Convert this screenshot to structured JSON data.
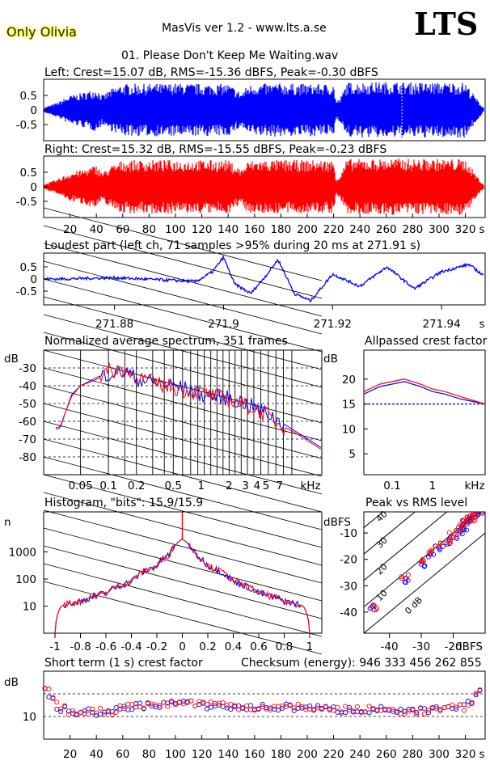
{
  "header": {
    "artist": "Only Olivia",
    "app_title": "MasVis ver 1.2 - www.lts.a.se",
    "logo": "LTS",
    "track_title": "01. Please Don't Keep Me Waiting.wav"
  },
  "waveforms": {
    "left_label": "Left: Crest=15.07 dB, RMS=-15.36 dBFS, Peak=-0.30 dBFS",
    "right_label": "Right: Crest=15.32 dB, RMS=-15.55 dBFS, Peak=-0.23 dBFS",
    "y_ticks": [
      "0.5",
      "0",
      "-0.5"
    ],
    "x_ticks": [
      "20",
      "40",
      "60",
      "80",
      "100",
      "120",
      "140",
      "160",
      "180",
      "200",
      "220",
      "240",
      "260",
      "280",
      "300",
      "320"
    ],
    "x_unit": "s",
    "left_color": "#0000ff",
    "right_color": "#ff0000"
  },
  "loudest": {
    "label": "Loudest part (left  ch, 71 samples >95% during 20 ms at 271.91 s)",
    "y_ticks": [
      "0.5",
      "0",
      "-0.5"
    ],
    "x_ticks": [
      "271.88",
      "271.9",
      "271.92",
      "271.94"
    ],
    "x_unit": "s"
  },
  "spectrum": {
    "label": "Normalized average spectrum, 351 frames",
    "y_unit": "dB",
    "y_ticks": [
      "-30",
      "-40",
      "-50",
      "-60",
      "-70",
      "-80"
    ],
    "x_ticks": [
      "0.05",
      "0.1",
      "0.2",
      "0.5",
      "1",
      "2",
      "3",
      "4",
      "5",
      "7"
    ],
    "x_unit": "kHz"
  },
  "allpass": {
    "label": "Allpassed crest factor",
    "y_unit": "dB",
    "y_ticks": [
      "20",
      "15",
      "10",
      "5"
    ],
    "x_ticks": [
      "0.1",
      "1"
    ],
    "x_unit": "kHz"
  },
  "histogram": {
    "label": "Histogram, \"bits\": 15.9/15.9",
    "y_unit": "n",
    "y_ticks": [
      "1000",
      "100",
      "10"
    ],
    "x_ticks": [
      "-1",
      "-0.8",
      "-0.6",
      "-0.4",
      "-0.2",
      "0",
      "0.2",
      "0.4",
      "0.6",
      "0.8",
      "1"
    ]
  },
  "peak_rms": {
    "label": "Peak vs RMS level",
    "y_unit": "dBFS",
    "y_ticks": [
      "-10",
      "-20",
      "-30",
      "-40"
    ],
    "x_ticks": [
      "-40",
      "-30",
      "-20"
    ],
    "x_unit": "dBFS",
    "diag_labels": [
      "40",
      "30",
      "20",
      "10",
      "0 dB"
    ]
  },
  "crest_short": {
    "label": "Short term (1 s) crest factor",
    "checksum": "Checksum (energy):   946 333 456 262 855",
    "y_unit": "dB",
    "y_ticks": [
      "10"
    ],
    "x_ticks": [
      "20",
      "40",
      "60",
      "80",
      "100",
      "120",
      "140",
      "160",
      "180",
      "200",
      "220",
      "240",
      "260",
      "280",
      "300",
      "320"
    ],
    "x_unit": "s"
  },
  "chart_data": [
    {
      "type": "area",
      "name": "Left",
      "x_label": "s",
      "xlim": [
        0,
        335
      ],
      "ylim": [
        -1,
        1
      ],
      "envelope_x": [
        0,
        10,
        20,
        30,
        40,
        45,
        50,
        55,
        60,
        80,
        100,
        120,
        140,
        150,
        155,
        160,
        180,
        200,
        220,
        222,
        225,
        230,
        240,
        260,
        270,
        280,
        300,
        320,
        330,
        335
      ],
      "envelope_y": [
        0.08,
        0.25,
        0.5,
        0.6,
        0.75,
        0.5,
        0.7,
        0.8,
        0.9,
        0.9,
        0.92,
        0.9,
        0.9,
        0.6,
        0.85,
        0.9,
        0.92,
        0.9,
        0.9,
        0.3,
        0.4,
        0.95,
        0.95,
        0.97,
        0.97,
        0.95,
        0.95,
        0.95,
        0.3,
        0.02
      ]
    },
    {
      "type": "area",
      "name": "Right",
      "x_label": "s",
      "xlim": [
        0,
        335
      ],
      "ylim": [
        -1,
        1
      ],
      "envelope_x": [
        0,
        10,
        20,
        30,
        40,
        45,
        50,
        55,
        60,
        80,
        100,
        120,
        140,
        150,
        155,
        160,
        180,
        200,
        220,
        222,
        225,
        230,
        240,
        260,
        270,
        280,
        300,
        320,
        330,
        335
      ],
      "envelope_y": [
        0.08,
        0.25,
        0.5,
        0.6,
        0.75,
        0.5,
        0.7,
        0.8,
        0.92,
        0.92,
        0.93,
        0.92,
        0.92,
        0.6,
        0.88,
        0.92,
        0.93,
        0.92,
        0.92,
        0.3,
        0.4,
        0.95,
        0.96,
        0.97,
        0.98,
        0.96,
        0.96,
        0.96,
        0.3,
        0.02
      ]
    },
    {
      "type": "line",
      "name": "Loudest part (left)",
      "x": [
        271.87,
        271.88,
        271.89,
        271.895,
        271.898,
        271.9,
        271.902,
        271.905,
        271.908,
        271.91,
        271.913,
        271.916,
        271.92,
        271.925,
        271.93,
        271.935,
        271.94,
        271.945,
        271.948
      ],
      "y": [
        0,
        0.05,
        -0.05,
        -0.1,
        0.3,
        0.9,
        -0.2,
        -0.6,
        0.2,
        0.8,
        -0.6,
        -0.9,
        0.2,
        -0.3,
        0.5,
        -0.4,
        0.3,
        0.6,
        0.1
      ],
      "xlim": [
        271.867,
        271.948
      ],
      "ylim": [
        -1,
        1
      ]
    },
    {
      "type": "line",
      "name": "Normalized average spectrum",
      "x_unit": "kHz",
      "ylim": [
        -90,
        -20
      ],
      "series": [
        {
          "name": "Left",
          "x": [
            0.02,
            0.03,
            0.04,
            0.05,
            0.07,
            0.1,
            0.15,
            0.2,
            0.3,
            0.5,
            0.7,
            1,
            2,
            3,
            5,
            7,
            10,
            20
          ],
          "y": [
            -65,
            -64,
            -45,
            -40,
            -37,
            -33,
            -32,
            -36,
            -38,
            -40,
            -42,
            -45,
            -47,
            -50,
            -55,
            -60,
            -65,
            -75
          ]
        },
        {
          "name": "Right",
          "x": [
            0.02,
            0.03,
            0.04,
            0.05,
            0.07,
            0.1,
            0.15,
            0.2,
            0.3,
            0.5,
            0.7,
            1,
            2,
            3,
            5,
            7,
            10,
            20
          ],
          "y": [
            -65,
            -63,
            -46,
            -40,
            -36,
            -32,
            -31,
            -35,
            -38,
            -41,
            -43,
            -44,
            -48,
            -51,
            -56,
            -62,
            -66,
            -76
          ]
        }
      ]
    },
    {
      "type": "line",
      "name": "Allpassed crest factor",
      "x_unit": "kHz",
      "ylim": [
        0,
        25
      ],
      "series": [
        {
          "name": "Left",
          "x": [
            0.02,
            0.05,
            0.1,
            0.2,
            0.5,
            1,
            2,
            5,
            20
          ],
          "y": [
            17,
            18.5,
            19,
            19.5,
            18.5,
            17.5,
            17,
            16,
            15
          ]
        },
        {
          "name": "Right",
          "x": [
            0.02,
            0.05,
            0.1,
            0.2,
            0.5,
            1,
            2,
            5,
            20
          ],
          "y": [
            17.5,
            19,
            19.5,
            20,
            19,
            18,
            17.5,
            16.5,
            15
          ]
        },
        {
          "name": "Reference",
          "x": [
            0.02,
            20
          ],
          "y": [
            15,
            15
          ]
        }
      ]
    },
    {
      "type": "line",
      "name": "Histogram",
      "x_label": "",
      "ylim": [
        1,
        30000
      ],
      "log_y": true,
      "x": [
        -1,
        -0.99,
        -0.95,
        -0.9,
        -0.8,
        -0.6,
        -0.4,
        -0.2,
        -0.1,
        0,
        0.1,
        0.2,
        0.4,
        0.6,
        0.8,
        0.9,
        0.95,
        0.99,
        1
      ],
      "y": [
        1,
        3,
        10,
        12,
        15,
        30,
        80,
        300,
        800,
        3000,
        800,
        300,
        80,
        30,
        15,
        12,
        10,
        3,
        1
      ]
    },
    {
      "type": "scatter",
      "name": "Peak vs RMS level",
      "x_unit": "dBFS",
      "y_unit": "dBFS",
      "xlim": [
        -48,
        -10
      ],
      "ylim": [
        -48,
        -2
      ],
      "series": [
        {
          "name": "Left",
          "x": [
            -45,
            -35,
            -30,
            -27,
            -25,
            -22,
            -20,
            -18,
            -17,
            -16,
            -15,
            -14,
            -13,
            -12
          ],
          "y": [
            -38,
            -28,
            -22,
            -18,
            -16,
            -14,
            -12,
            -10,
            -8,
            -6,
            -5,
            -4,
            -3,
            -3
          ]
        },
        {
          "name": "Right",
          "x": [
            -45,
            -35,
            -30,
            -27,
            -25,
            -22,
            -20,
            -18,
            -17,
            -16,
            -15,
            -14,
            -13,
            -12
          ],
          "y": [
            -38,
            -27,
            -21,
            -17,
            -15,
            -13,
            -11,
            -9,
            -7,
            -6,
            -5,
            -4,
            -3,
            -2
          ]
        }
      ]
    },
    {
      "type": "scatter",
      "name": "Short term (1 s) crest factor",
      "x_unit": "s",
      "y_unit": "dB",
      "xlim": [
        0,
        335
      ],
      "ylim": [
        5,
        20
      ],
      "series": [
        {
          "name": "Left",
          "x": [
            2,
            10,
            20,
            30,
            40,
            50,
            60,
            80,
            100,
            120,
            140,
            160,
            180,
            200,
            220,
            240,
            260,
            280,
            300,
            320,
            330
          ],
          "y": [
            16,
            12,
            11,
            11,
            11,
            10.5,
            12,
            12.5,
            13,
            12.5,
            12,
            12,
            12,
            12,
            11.5,
            11.5,
            11.5,
            11,
            11.5,
            12,
            15
          ]
        },
        {
          "name": "Right",
          "x": [
            2,
            10,
            20,
            30,
            40,
            50,
            60,
            80,
            100,
            120,
            140,
            160,
            180,
            200,
            220,
            240,
            260,
            280,
            300,
            320,
            330
          ],
          "y": [
            17,
            12.5,
            11,
            11,
            11.5,
            10.5,
            12.5,
            12.5,
            13,
            13,
            12.5,
            12,
            12,
            12,
            11.5,
            11.5,
            11.5,
            11,
            11.5,
            12,
            15.5
          ]
        }
      ]
    }
  ]
}
